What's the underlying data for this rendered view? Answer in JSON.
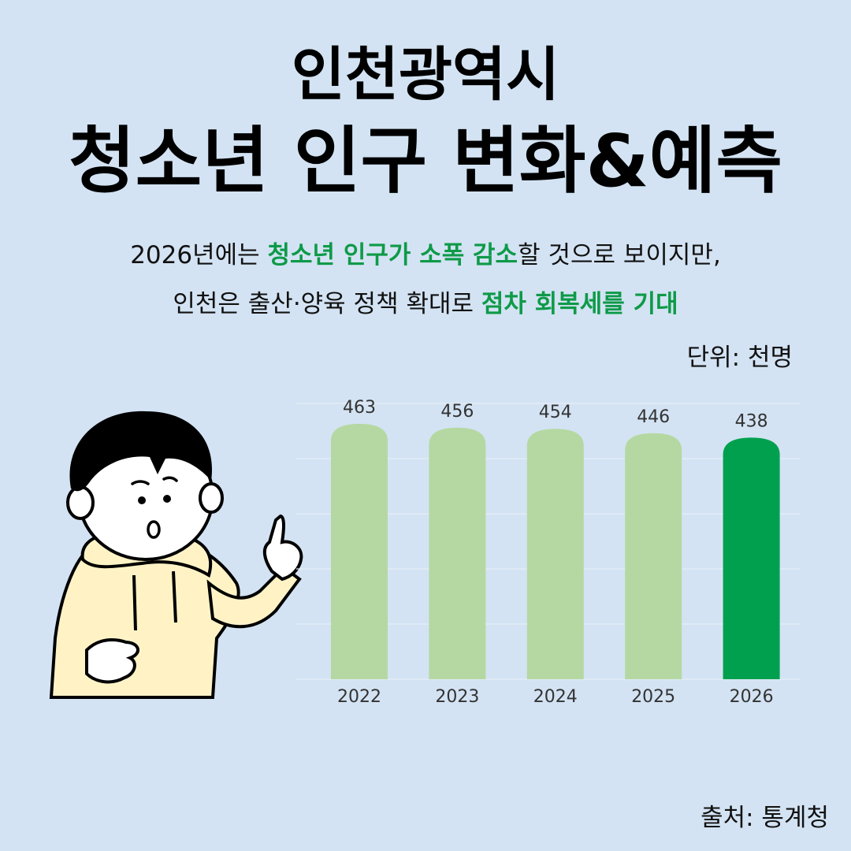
{
  "title": {
    "line1": "인천광역시",
    "line2": "청소년 인구 변화&예측"
  },
  "subtitle": {
    "line1": [
      {
        "text": "2026년에는 ",
        "highlight": false
      },
      {
        "text": "청소년 인구가 소폭 감소",
        "highlight": true
      },
      {
        "text": "할 것으로 보이지만,",
        "highlight": false
      }
    ],
    "line2": [
      {
        "text": "인천은 출산·양육 정책 확대로 ",
        "highlight": false
      },
      {
        "text": "점차 회복세를 기대",
        "highlight": true
      }
    ]
  },
  "unit_label": "단위: 천명",
  "source_label": "출처: 통계청",
  "colors": {
    "background": "#d3e3f3",
    "bar_default": "#b5d8a2",
    "bar_highlight": "#00a04e",
    "highlight_text": "#0e9a48"
  },
  "illustration": "cartoon-boy-pointing-up",
  "chart_data": {
    "type": "bar",
    "categories": [
      "2022",
      "2023",
      "2024",
      "2025",
      "2026"
    ],
    "values": [
      463,
      456,
      454,
      446,
      438
    ],
    "highlight_index": 4,
    "ylim": [
      0,
      500
    ],
    "grid": true,
    "data_labels": true,
    "xlabel": "",
    "ylabel": ""
  }
}
